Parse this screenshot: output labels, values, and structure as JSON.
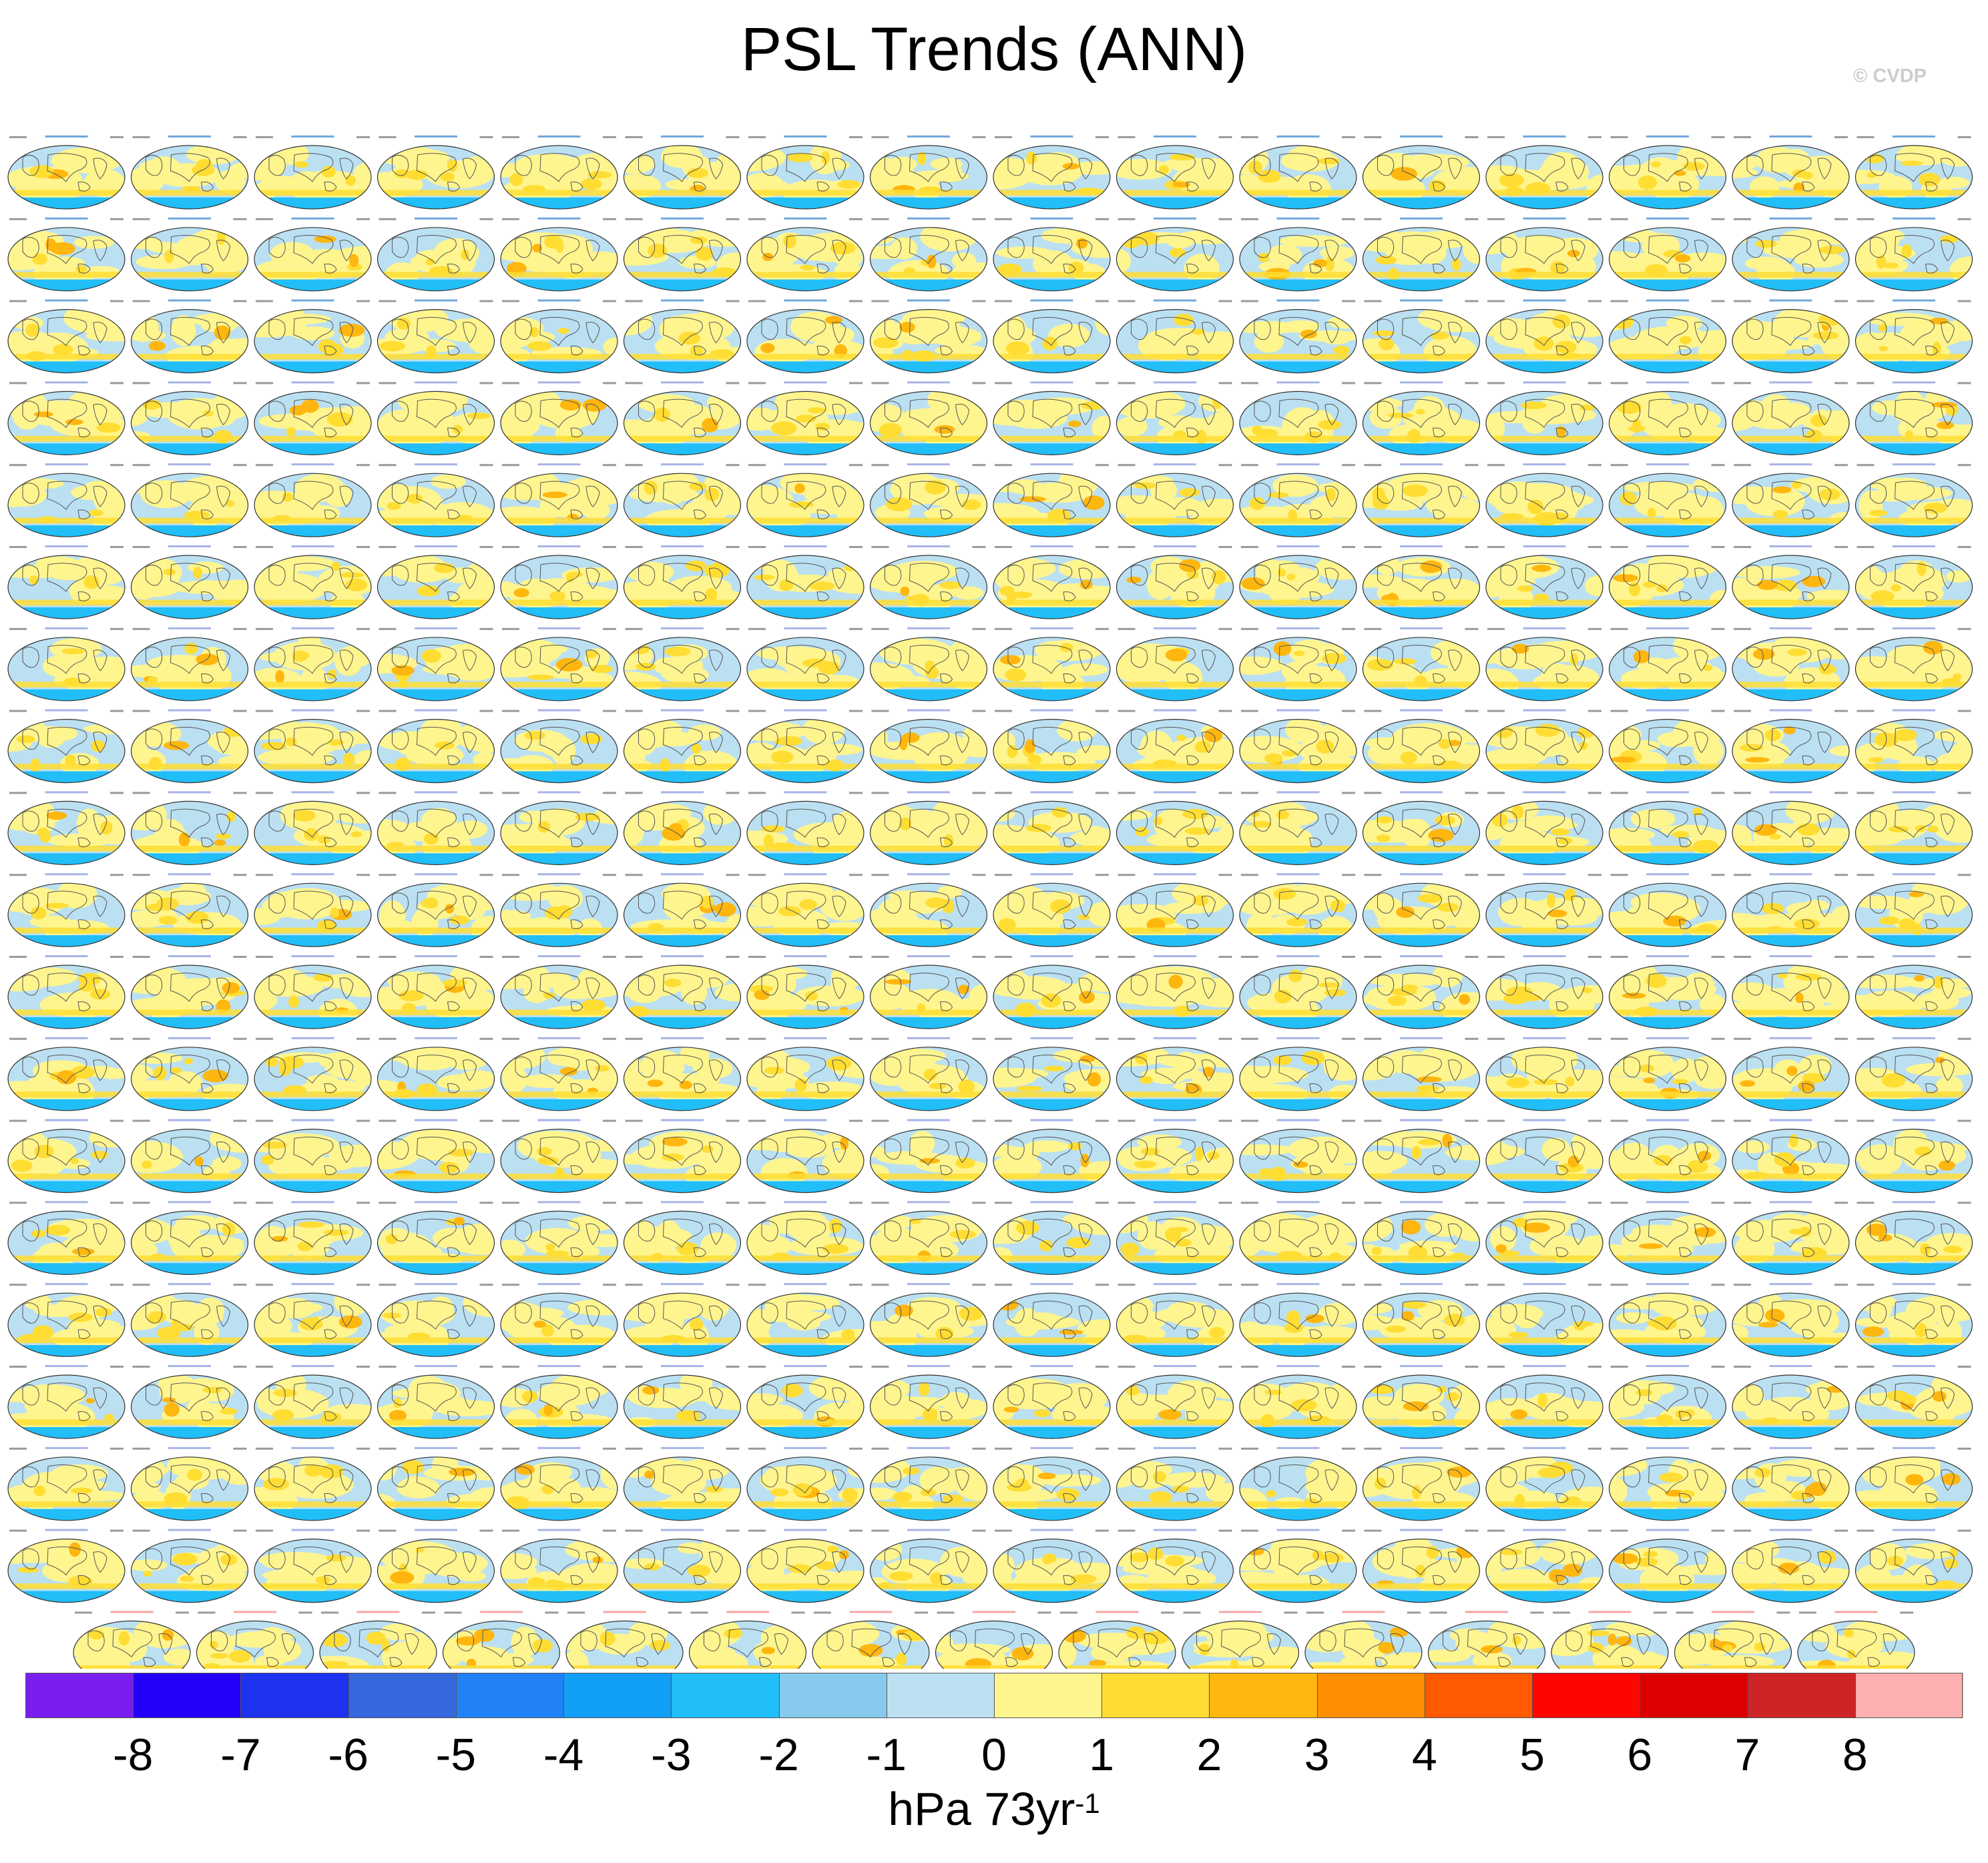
{
  "title": "PSL Trends (ANN)",
  "watermark": "© CVDP",
  "chart_data": {
    "type": "heatmap",
    "description_of_panels": "Grid of small global map panels (one per ensemble member) showing annual sea-level-pressure trends",
    "rows_of_panels": 19,
    "panels_per_row": [
      16,
      16,
      16,
      16,
      16,
      16,
      16,
      16,
      16,
      16,
      16,
      16,
      16,
      16,
      16,
      16,
      16,
      16,
      15
    ],
    "colorbar": {
      "levels": [
        -8,
        -7,
        -6,
        -5,
        -4,
        -3,
        -2,
        -1,
        0,
        1,
        2,
        3,
        4,
        5,
        6,
        7,
        8
      ],
      "colors": [
        "#7a1ef0",
        "#2500f8",
        "#1d33ee",
        "#3468dc",
        "#2181f6",
        "#129ff7",
        "#21bef8",
        "#86cbee",
        "#bbe0f2",
        "#fff58e",
        "#ffdd33",
        "#ffb60e",
        "#ff8e00",
        "#ff5a00",
        "#ff0500",
        "#dc0000",
        "#cf2427",
        "#ffb1b1"
      ],
      "label_main": "hPa 73yr",
      "label_exp": "-1"
    }
  }
}
